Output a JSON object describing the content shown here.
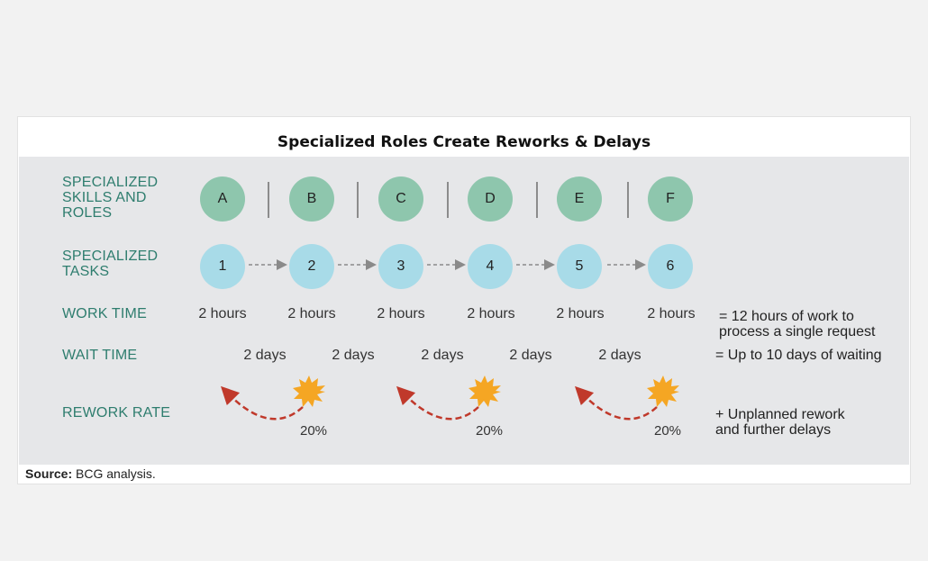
{
  "title": "Specialized Roles Create Reworks & Delays",
  "labels": {
    "roles": [
      "SPECIALIZED",
      "SKILLS AND",
      "ROLES"
    ],
    "tasks": [
      "SPECIALIZED",
      "TASKS"
    ],
    "work_time": "WORK TIME",
    "wait_time": "WAIT TIME",
    "rework_rate": "REWORK RATE"
  },
  "roles": [
    "A",
    "B",
    "C",
    "D",
    "E",
    "F"
  ],
  "tasks": [
    "1",
    "2",
    "3",
    "4",
    "5",
    "6"
  ],
  "work_times": [
    "2 hours",
    "2 hours",
    "2 hours",
    "2 hours",
    "2 hours",
    "2 hours"
  ],
  "wait_times": [
    "2 days",
    "2 days",
    "2 days",
    "2 days",
    "2 days"
  ],
  "rework_rates": [
    "20%",
    "20%",
    "20%"
  ],
  "summary": {
    "work": [
      "= 12 hours of work to",
      "process a single request"
    ],
    "wait": "= Up to 10 days of waiting",
    "rework": [
      "+ Unplanned rework",
      "and further delays"
    ]
  },
  "source": {
    "label": "Source:",
    "text": " BCG analysis."
  },
  "colors": {
    "role_circle": "#8ec6ad",
    "task_circle": "#a8dbe8",
    "label_text": "#2e7d6e",
    "rework_arrow": "#c0392b",
    "burst": "#f5a623"
  }
}
